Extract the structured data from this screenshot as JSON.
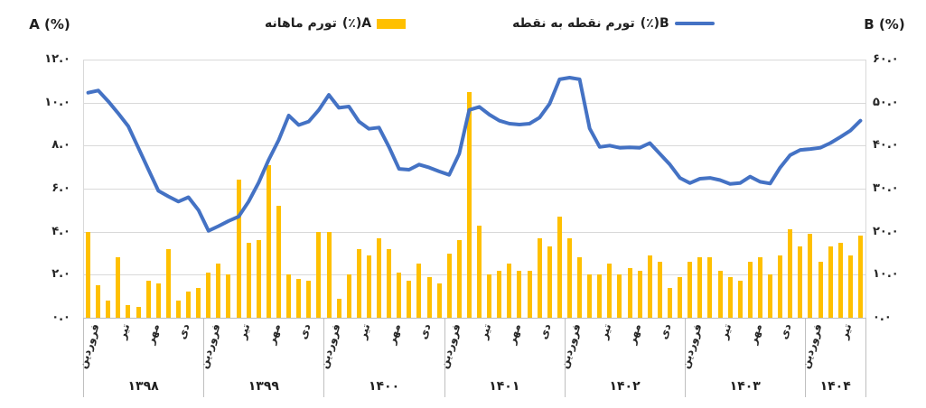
{
  "legend": {
    "items": [
      {
        "label_fa": "تورم ماهانه",
        "symbol": "(٪)A",
        "swatch": "bar",
        "color": "#FFC000"
      },
      {
        "label_fa": "تورم نقطه به نقطه",
        "symbol": "(٪)B",
        "swatch": "line",
        "color": "#4472C4"
      }
    ]
  },
  "colors": {
    "bar": "#FFC000",
    "line": "#4472C4",
    "gridline": "#D9D9D9",
    "axis": "#BFBFBF",
    "text": "#1F1F1F"
  },
  "chart_data": {
    "type": "combo-bar-line-dual-axis",
    "grid": true,
    "legend_position": "top-center",
    "left_axis": {
      "title": "A (%)",
      "min": 0,
      "max": 12,
      "step": 2,
      "tick_labels_top_to_bottom": [
        "۱۲.۰",
        "۱۰.۰",
        "۸.۰",
        "۶.۰",
        "۴.۰",
        "۲.۰",
        "۰.۰"
      ]
    },
    "right_axis": {
      "title": "B (%)",
      "min": 0,
      "max": 60,
      "step": 10,
      "tick_labels_top_to_bottom": [
        "۶۰.۰",
        "۵۰.۰",
        "۴۰.۰",
        "۳۰.۰",
        "۲۰.۰",
        "۱۰.۰",
        "۰.۰"
      ]
    },
    "month_tick_names": [
      "فروردین",
      "تیر",
      "مهر",
      "دی"
    ],
    "month_tick_indices": [
      0,
      3,
      6,
      9
    ],
    "series": [
      {
        "name": "تورم ماهانه (٪)A",
        "type": "bar",
        "axis": "left",
        "color": "#FFC000"
      },
      {
        "name": "تورم نقطه به نقطه (٪)B",
        "type": "line",
        "axis": "right",
        "color": "#4472C4"
      }
    ],
    "years": [
      {
        "year": "۱۳۹۸",
        "monthly_A": [
          4.0,
          1.5,
          0.8,
          2.8,
          0.6,
          0.5,
          1.7,
          1.6,
          3.2,
          0.8,
          1.2,
          1.4
        ],
        "point_to_point_B": [
          52.3,
          52.8,
          50.3,
          47.5,
          44.5,
          39.5,
          34.5,
          29.5,
          28.2,
          27.0,
          28.0,
          25.0
        ]
      },
      {
        "year": "۱۳۹۹",
        "monthly_A": [
          2.1,
          2.5,
          2.0,
          6.4,
          3.5,
          3.6,
          7.1,
          5.2,
          2.0,
          1.8,
          1.7,
          4.0
        ],
        "point_to_point_B": [
          20.2,
          21.3,
          22.5,
          23.5,
          27.0,
          31.4,
          36.7,
          41.3,
          47.0,
          44.8,
          45.6,
          48.3
        ]
      },
      {
        "year": "۱۴۰۰",
        "monthly_A": [
          4.0,
          0.9,
          2.0,
          3.2,
          2.9,
          3.7,
          3.2,
          2.1,
          1.7,
          2.5,
          1.9,
          1.6
        ],
        "point_to_point_B": [
          51.8,
          48.8,
          49.1,
          45.6,
          43.9,
          44.2,
          39.7,
          34.6,
          34.4,
          35.6,
          34.9,
          34.0
        ]
      },
      {
        "year": "۱۴۰۱",
        "monthly_A": [
          3.0,
          3.6,
          10.5,
          4.3,
          2.0,
          2.2,
          2.5,
          2.2,
          2.2,
          3.7,
          3.3,
          4.7
        ],
        "point_to_point_B": [
          33.2,
          38.1,
          48.3,
          49.0,
          47.2,
          45.8,
          45.1,
          44.9,
          45.1,
          46.5,
          49.7,
          55.4
        ]
      },
      {
        "year": "۱۴۰۲",
        "monthly_A": [
          3.7,
          2.8,
          2.0,
          2.0,
          2.5,
          2.0,
          2.3,
          2.2,
          2.9,
          2.6,
          1.4,
          1.9
        ],
        "point_to_point_B": [
          55.8,
          55.4,
          44.0,
          39.7,
          40.0,
          39.5,
          39.6,
          39.5,
          40.6,
          38.1,
          35.6,
          32.5
        ]
      },
      {
        "year": "۱۴۰۳",
        "monthly_A": [
          2.6,
          2.8,
          2.8,
          2.2,
          1.9,
          1.7,
          2.6,
          2.8,
          2.0,
          2.9,
          4.1,
          3.3
        ],
        "point_to_point_B": [
          31.3,
          32.3,
          32.5,
          32.0,
          31.1,
          31.3,
          32.8,
          31.6,
          31.2,
          34.9,
          37.8,
          39.0
        ]
      },
      {
        "year": "۱۴۰۴",
        "monthly_A": [
          3.9,
          2.6,
          3.3,
          3.5,
          2.9,
          3.8
        ],
        "point_to_point_B": [
          39.2,
          39.5,
          40.6,
          42.0,
          43.5,
          45.8
        ]
      }
    ]
  }
}
